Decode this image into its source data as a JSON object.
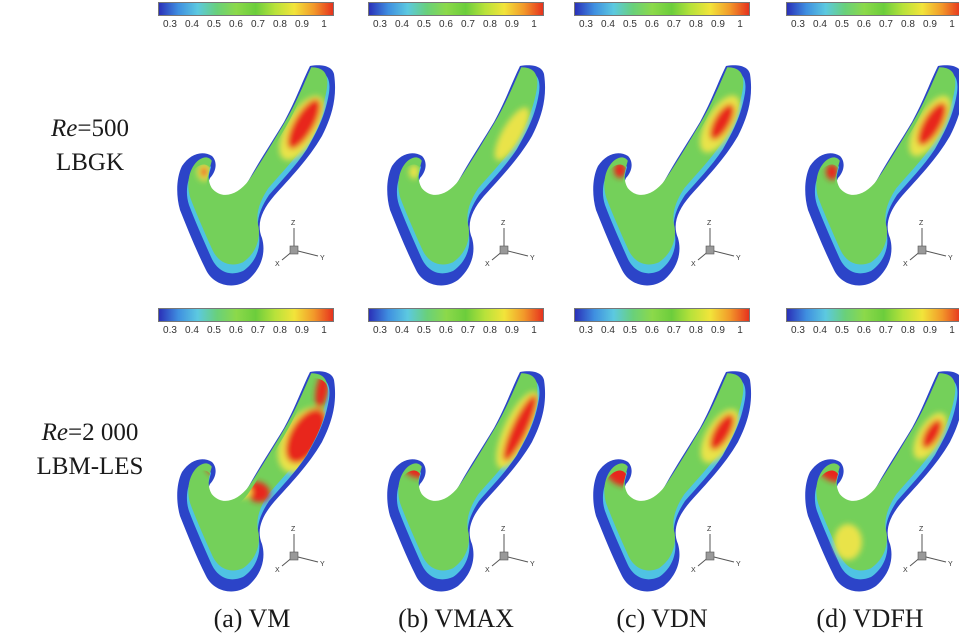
{
  "rows": [
    {
      "re_label": "Re",
      "re_value": "=500",
      "method": "LBGK"
    },
    {
      "re_label": "Re",
      "re_value": "=2 000",
      "method": "LBM-LES"
    }
  ],
  "colorbar_ticks": [
    "0.3",
    "0.4",
    "0.5",
    "0.6",
    "0.7",
    "0.8",
    "0.9",
    "1"
  ],
  "colormap": [
    "#2a30b8",
    "#3f8fe0",
    "#5cc9e0",
    "#69d07a",
    "#8cd94a",
    "#6ccd3c",
    "#b8e23a",
    "#f2e43a",
    "#f29a2a",
    "#e6321e"
  ],
  "triad_axes": {
    "z": "Z",
    "x": "X",
    "y": "Y"
  },
  "captions": [
    "(a) VM",
    "(b) VMAX",
    "(c) VDN",
    "(d) VDFH"
  ],
  "colors": {
    "outer_blue": "#2c44c8",
    "edge_cyan": "#4fc3e3",
    "body_green": "#74d05a",
    "core_yellow": "#e9e34a",
    "core_red": "#e8261a"
  }
}
